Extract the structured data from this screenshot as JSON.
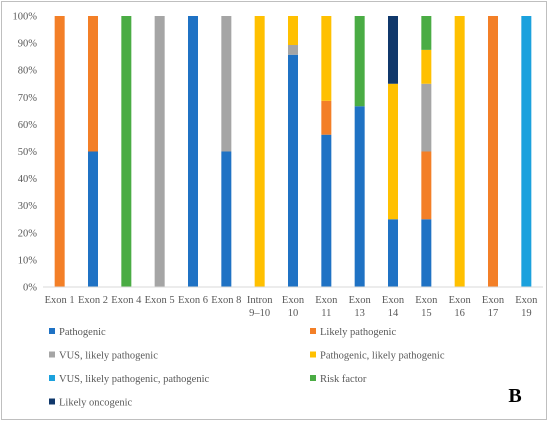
{
  "panel_label": "B",
  "chart_data": {
    "type": "bar",
    "stacked": "percent",
    "categories": [
      [
        "Exon 1"
      ],
      [
        "Exon 2"
      ],
      [
        "Exon 4"
      ],
      [
        "Exon 5"
      ],
      [
        "Exon 6"
      ],
      [
        "Exon 8"
      ],
      [
        "Intron",
        "9–10"
      ],
      [
        "Exon",
        "10"
      ],
      [
        "Exon",
        "11"
      ],
      [
        "Exon",
        "13"
      ],
      [
        "Exon",
        "14"
      ],
      [
        "Exon",
        "15"
      ],
      [
        "Exon",
        "16"
      ],
      [
        "Exon",
        "17"
      ],
      [
        "Exon",
        "19"
      ]
    ],
    "y_ticks": [
      "0%",
      "10%",
      "20%",
      "30%",
      "40%",
      "50%",
      "60%",
      "70%",
      "80%",
      "90%",
      "100%"
    ],
    "ylim": [
      0,
      100
    ],
    "grid": false,
    "legend_position": "bottom",
    "series": [
      {
        "name": "Pathogenic",
        "color": "#1f72c4",
        "values": [
          0,
          50,
          0,
          0,
          100,
          50,
          0,
          85.7,
          56.2,
          66.7,
          25,
          25,
          0,
          0,
          0
        ]
      },
      {
        "name": "Likely pathogenic",
        "color": "#f37f27",
        "values": [
          100,
          50,
          0,
          0,
          0,
          0,
          0,
          0,
          12.5,
          0,
          0,
          25,
          0,
          100,
          0
        ]
      },
      {
        "name": "VUS, likely pathogenic",
        "color": "#a5a5a5",
        "values": [
          0,
          0,
          0,
          100,
          0,
          50,
          0,
          3.6,
          0,
          0,
          0,
          25,
          0,
          0,
          0
        ]
      },
      {
        "name": "Pathogenic, likely pathogenic",
        "color": "#ffc000",
        "values": [
          0,
          0,
          0,
          0,
          0,
          0,
          100,
          10.7,
          31.3,
          0,
          50,
          12.5,
          100,
          0,
          0
        ]
      },
      {
        "name": "VUS, likely pathogenic, pathogenic",
        "color": "#1ba1dd",
        "values": [
          0,
          0,
          0,
          0,
          0,
          0,
          0,
          0,
          0,
          0,
          0,
          0,
          0,
          0,
          100
        ]
      },
      {
        "name": "Risk factor",
        "color": "#4aac44",
        "values": [
          0,
          0,
          100,
          0,
          0,
          0,
          0,
          0,
          0,
          33.3,
          0,
          12.5,
          0,
          0,
          0
        ]
      },
      {
        "name": "Likely oncogenic",
        "color": "#10386b",
        "values": [
          0,
          0,
          0,
          0,
          0,
          0,
          0,
          0,
          0,
          0,
          25,
          0,
          0,
          0,
          0
        ]
      }
    ]
  }
}
